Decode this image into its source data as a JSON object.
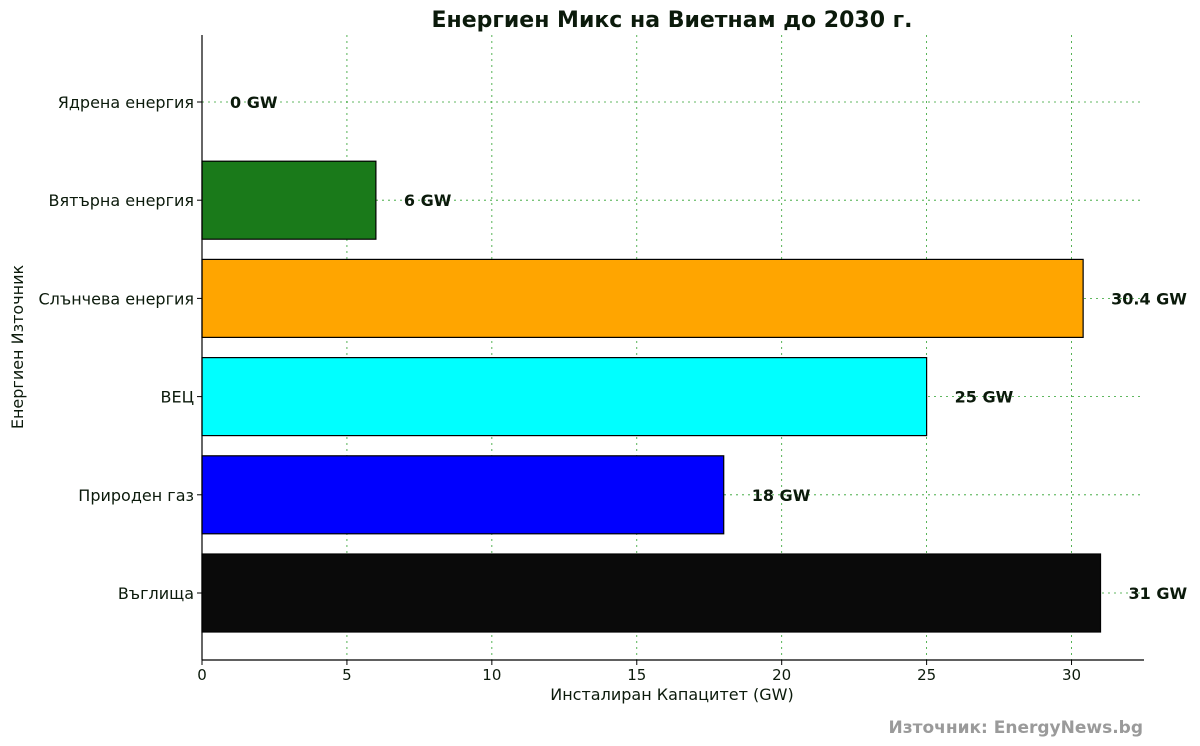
{
  "chart_data": {
    "type": "bar",
    "orientation": "horizontal",
    "title": "Енергиен Микс на Виетнам до 2030 г.",
    "xlabel": "Инсталиран Капацитет (GW)",
    "ylabel": "Енергиен Източник",
    "categories": [
      "Ядрена енергия",
      "Вятърна енергия",
      "Слънчева енергия",
      "ВЕЦ",
      "Природен газ",
      "Въглища"
    ],
    "values": [
      0,
      6,
      30.4,
      25,
      18,
      31
    ],
    "value_labels": [
      "0 GW",
      "6 GW",
      "30.4 GW",
      "25 GW",
      "18 GW",
      "31 GW"
    ],
    "bar_colors": [
      "#808080",
      "#1a7a1a",
      "#ffa500",
      "#00ffff",
      "#0000ff",
      "#0a0a0a"
    ],
    "xlim": [
      0,
      32.5
    ],
    "xticks": [
      "0",
      "5",
      "10",
      "15",
      "20",
      "25",
      "30"
    ],
    "grid": true,
    "grid_color": "#2ca02c"
  },
  "source": "Източник: EnergyNews.bg"
}
